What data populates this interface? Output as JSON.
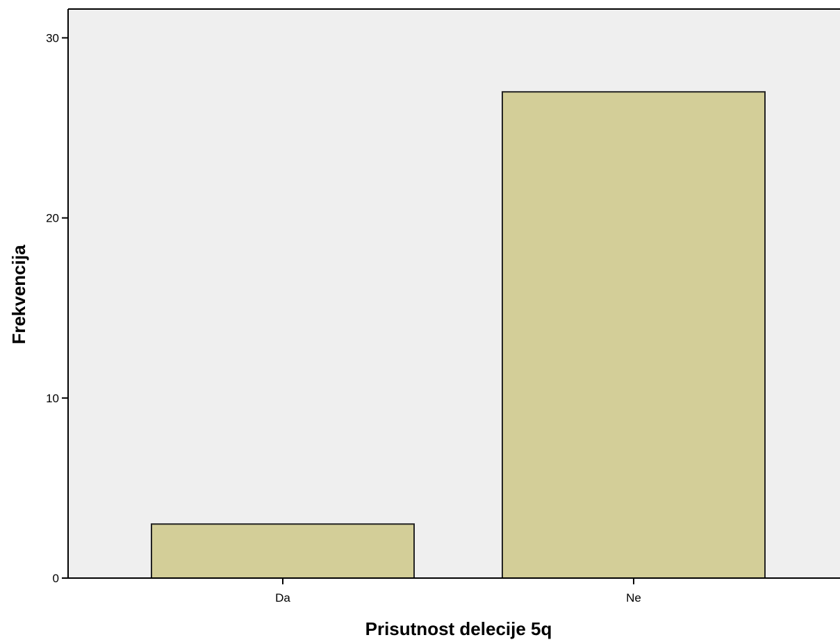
{
  "chart_data": {
    "type": "bar",
    "categories": [
      "Da",
      "Ne"
    ],
    "values": [
      3,
      27
    ],
    "xlabel": "Prisutnost delecije 5q",
    "ylabel": "Frekvencija",
    "ylim": [
      0,
      31.6
    ],
    "yticks": [
      0,
      10,
      20,
      30
    ],
    "grid": false,
    "plot_background": "#efefef",
    "bar_color": "#d3ce98",
    "bar_edge_color": "#222222"
  }
}
